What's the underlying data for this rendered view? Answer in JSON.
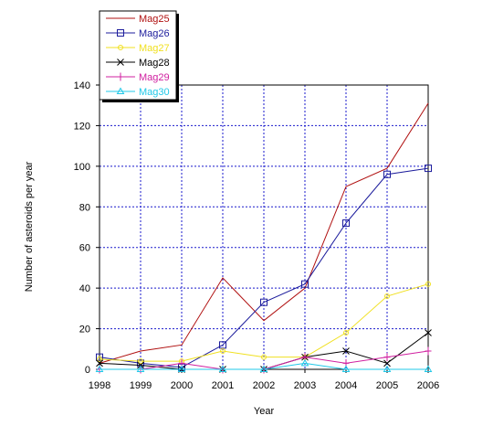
{
  "chart_data": {
    "type": "line",
    "xlabel": "Year",
    "ylabel": "Number of asteroids per year",
    "x": [
      "1998",
      "1999",
      "2000",
      "2001",
      "2002",
      "2003",
      "2004",
      "2005",
      "2006"
    ],
    "ylim": [
      0,
      140
    ],
    "yticks": [
      "0",
      "20",
      "40",
      "60",
      "80",
      "100",
      "120",
      "140"
    ],
    "grid": true,
    "legend_position": "top-left",
    "series": [
      {
        "name": "Mag25",
        "color": "#b01010",
        "marker": "none",
        "values": [
          3,
          9,
          12,
          45,
          24,
          40,
          90,
          99,
          131
        ]
      },
      {
        "name": "Mag26",
        "color": "#1c1c9c",
        "marker": "square",
        "values": [
          6,
          3,
          1,
          12,
          33,
          42,
          72,
          96,
          99
        ]
      },
      {
        "name": "Mag27",
        "color": "#f0e020",
        "marker": "circle",
        "values": [
          5,
          4,
          4,
          9,
          6,
          6,
          18,
          36,
          42
        ]
      },
      {
        "name": "Mag28",
        "color": "#000000",
        "marker": "x",
        "values": [
          3,
          2,
          0,
          0,
          0,
          6,
          9,
          3,
          18
        ]
      },
      {
        "name": "Mag29",
        "color": "#d020a0",
        "marker": "plus",
        "values": [
          0,
          0,
          3,
          0,
          0,
          6,
          3,
          6,
          9
        ]
      },
      {
        "name": "Mag30",
        "color": "#20c8e8",
        "marker": "triangle",
        "values": [
          0,
          0,
          0,
          0,
          0,
          3,
          0,
          0,
          0
        ]
      }
    ]
  }
}
